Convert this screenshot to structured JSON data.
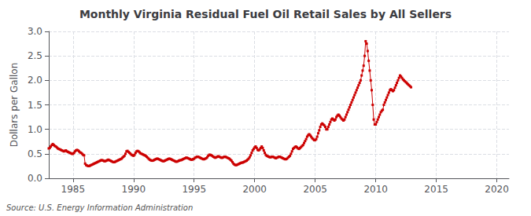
{
  "chart_data": {
    "type": "line",
    "title": "Monthly Virginia Residual Fuel Oil Retail Sales by All Sellers",
    "ylabel": "Dollars per Gallon",
    "annotation": "Source: U.S. Energy Information Administration",
    "color": "#cc0000",
    "marker": "square",
    "line_style": "solid",
    "grid": true,
    "xlim": [
      1983,
      2021
    ],
    "ylim": [
      0.0,
      3.0
    ],
    "xticks": [
      1985,
      1990,
      1995,
      2000,
      2005,
      2010,
      2015,
      2020
    ],
    "yticks": [
      {
        "value": 0.0,
        "label": "0.0"
      },
      0.5,
      {
        "value": 1.0,
        "label": "1.0"
      },
      1.5,
      {
        "value": 2.0,
        "label": "2.0"
      },
      2.5,
      {
        "value": 3.0,
        "label": "3.0"
      }
    ],
    "x": [
      1983,
      1983.083333,
      1983.166667,
      1983.25,
      1983.333333,
      1983.416667,
      1983.5,
      1983.583333,
      1983.666667,
      1983.75,
      1983.833333,
      1983.916667,
      1984,
      1984.083333,
      1984.166667,
      1984.25,
      1984.333333,
      1984.416667,
      1984.5,
      1984.583333,
      1984.666667,
      1984.75,
      1984.833333,
      1984.916667,
      1985,
      1985.083333,
      1985.166667,
      1985.25,
      1985.333333,
      1985.416667,
      1985.5,
      1985.583333,
      1985.666667,
      1985.75,
      1985.833333,
      1985.916667,
      1986,
      1986.083333,
      1986.166667,
      1986.25,
      1986.333333,
      1986.416667,
      1986.5,
      1986.583333,
      1986.666667,
      1986.75,
      1986.833333,
      1986.916667,
      1987,
      1987.083333,
      1987.166667,
      1987.25,
      1987.333333,
      1987.416667,
      1987.5,
      1987.583333,
      1987.666667,
      1987.75,
      1987.833333,
      1987.916667,
      1988,
      1988.083333,
      1988.166667,
      1988.25,
      1988.333333,
      1988.416667,
      1988.5,
      1988.583333,
      1988.666667,
      1988.75,
      1988.833333,
      1988.916667,
      1989,
      1989.083333,
      1989.166667,
      1989.25,
      1989.333333,
      1989.416667,
      1989.5,
      1989.583333,
      1989.666667,
      1989.75,
      1989.833333,
      1989.916667,
      1990,
      1990.083333,
      1990.166667,
      1990.25,
      1990.333333,
      1990.416667,
      1990.5,
      1990.583333,
      1990.666667,
      1990.75,
      1990.833333,
      1990.916667,
      1991,
      1991.083333,
      1991.166667,
      1991.25,
      1991.333333,
      1991.416667,
      1991.5,
      1991.583333,
      1991.666667,
      1991.75,
      1991.833333,
      1991.916667,
      1992,
      1992.083333,
      1992.166667,
      1992.25,
      1992.333333,
      1992.416667,
      1992.5,
      1992.583333,
      1992.666667,
      1992.75,
      1992.833333,
      1992.916667,
      1993,
      1993.083333,
      1993.166667,
      1993.25,
      1993.333333,
      1993.416667,
      1993.5,
      1993.583333,
      1993.666667,
      1993.75,
      1993.833333,
      1993.916667,
      1994,
      1994.083333,
      1994.166667,
      1994.25,
      1994.333333,
      1994.416667,
      1994.5,
      1994.583333,
      1994.666667,
      1994.75,
      1994.833333,
      1994.916667,
      1995,
      1995.083333,
      1995.166667,
      1995.25,
      1995.333333,
      1995.416667,
      1995.5,
      1995.583333,
      1995.666667,
      1995.75,
      1995.833333,
      1995.916667,
      1996,
      1996.083333,
      1996.166667,
      1996.25,
      1996.333333,
      1996.416667,
      1996.5,
      1996.583333,
      1996.666667,
      1996.75,
      1996.833333,
      1996.916667,
      1997,
      1997.083333,
      1997.166667,
      1997.25,
      1997.333333,
      1997.416667,
      1997.5,
      1997.583333,
      1997.666667,
      1997.75,
      1997.833333,
      1997.916667,
      1998,
      1998.083333,
      1998.166667,
      1998.25,
      1998.333333,
      1998.416667,
      1998.5,
      1998.583333,
      1998.666667,
      1998.75,
      1998.833333,
      1998.916667,
      1999,
      1999.083333,
      1999.166667,
      1999.25,
      1999.333333,
      1999.416667,
      1999.5,
      1999.583333,
      1999.666667,
      1999.75,
      1999.833333,
      1999.916667,
      2000,
      2000.083333,
      2000.166667,
      2000.25,
      2000.333333,
      2000.416667,
      2000.5,
      2000.583333,
      2000.666667,
      2000.75,
      2000.833333,
      2000.916667,
      2001,
      2001.083333,
      2001.166667,
      2001.25,
      2001.333333,
      2001.416667,
      2001.5,
      2001.583333,
      2001.666667,
      2001.75,
      2001.833333,
      2001.916667,
      2002,
      2002.083333,
      2002.166667,
      2002.25,
      2002.333333,
      2002.416667,
      2002.5,
      2002.583333,
      2002.666667,
      2002.75,
      2002.833333,
      2002.916667,
      2003,
      2003.083333,
      2003.166667,
      2003.25,
      2003.333333,
      2003.416667,
      2003.5,
      2003.583333,
      2003.666667,
      2003.75,
      2003.833333,
      2003.916667,
      2004,
      2004.083333,
      2004.166667,
      2004.25,
      2004.333333,
      2004.416667,
      2004.5,
      2004.583333,
      2004.666667,
      2004.75,
      2004.833333,
      2004.916667,
      2005,
      2005.083333,
      2005.166667,
      2005.25,
      2005.333333,
      2005.416667,
      2005.5,
      2005.583333,
      2005.666667,
      2005.75,
      2005.833333,
      2005.916667,
      2006,
      2006.083333,
      2006.166667,
      2006.25,
      2006.333333,
      2006.416667,
      2006.5,
      2006.583333,
      2006.666667,
      2006.75,
      2006.833333,
      2006.916667,
      2007,
      2007.083333,
      2007.166667,
      2007.25,
      2007.333333,
      2007.416667,
      2007.5,
      2007.583333,
      2007.666667,
      2007.75,
      2007.833333,
      2007.916667,
      2008,
      2008.083333,
      2008.166667,
      2008.25,
      2008.333333,
      2008.416667,
      2008.5,
      2008.583333,
      2008.666667,
      2008.75,
      2008.833333,
      2008.916667,
      2009,
      2009.083333,
      2009.166667,
      2009.25,
      2009.333333,
      2009.416667,
      2009.5,
      2009.583333,
      2009.666667,
      2009.75,
      2009.833333,
      2009.916667,
      2010,
      2010.083333,
      2010.166667,
      2010.25,
      2010.333333,
      2010.416667,
      2010.5,
      2010.583333,
      2010.666667,
      2010.75,
      2010.833333,
      2010.916667,
      2011,
      2011.083333,
      2011.166667,
      2011.25,
      2011.333333,
      2011.416667,
      2011.5,
      2011.583333,
      2011.666667,
      2011.75,
      2011.833333,
      2011.916667,
      2012,
      2012.083333,
      2012.166667,
      2012.25,
      2012.333333,
      2012.416667,
      2012.5,
      2012.583333,
      2012.666667,
      2012.75,
      2012.833333,
      2012.916667
    ],
    "values": [
      0.61,
      0.62,
      0.65,
      0.68,
      0.7,
      0.68,
      0.66,
      0.65,
      0.63,
      0.61,
      0.6,
      0.59,
      0.58,
      0.57,
      0.56,
      0.55,
      0.56,
      0.57,
      0.55,
      0.54,
      0.53,
      0.52,
      0.51,
      0.5,
      0.5,
      0.52,
      0.55,
      0.57,
      0.58,
      0.57,
      0.55,
      0.53,
      0.52,
      0.5,
      0.48,
      0.47,
      0.3,
      0.27,
      0.26,
      0.25,
      0.25,
      0.26,
      0.27,
      0.28,
      0.29,
      0.3,
      0.31,
      0.32,
      0.33,
      0.34,
      0.35,
      0.36,
      0.37,
      0.37,
      0.36,
      0.35,
      0.35,
      0.36,
      0.37,
      0.38,
      0.37,
      0.36,
      0.35,
      0.34,
      0.33,
      0.33,
      0.34,
      0.35,
      0.36,
      0.37,
      0.38,
      0.39,
      0.4,
      0.42,
      0.44,
      0.46,
      0.5,
      0.55,
      0.56,
      0.54,
      0.52,
      0.5,
      0.48,
      0.47,
      0.46,
      0.48,
      0.52,
      0.55,
      0.56,
      0.55,
      0.53,
      0.51,
      0.5,
      0.49,
      0.48,
      0.47,
      0.46,
      0.44,
      0.42,
      0.4,
      0.38,
      0.37,
      0.36,
      0.36,
      0.37,
      0.38,
      0.39,
      0.4,
      0.4,
      0.39,
      0.38,
      0.37,
      0.36,
      0.35,
      0.35,
      0.36,
      0.37,
      0.38,
      0.39,
      0.4,
      0.4,
      0.39,
      0.38,
      0.37,
      0.36,
      0.35,
      0.34,
      0.34,
      0.35,
      0.36,
      0.37,
      0.37,
      0.38,
      0.39,
      0.4,
      0.41,
      0.42,
      0.42,
      0.41,
      0.4,
      0.39,
      0.38,
      0.38,
      0.39,
      0.4,
      0.42,
      0.43,
      0.44,
      0.44,
      0.43,
      0.42,
      0.41,
      0.4,
      0.39,
      0.39,
      0.4,
      0.41,
      0.43,
      0.46,
      0.48,
      0.48,
      0.47,
      0.46,
      0.44,
      0.43,
      0.42,
      0.43,
      0.44,
      0.45,
      0.44,
      0.43,
      0.42,
      0.42,
      0.43,
      0.44,
      0.44,
      0.43,
      0.42,
      0.41,
      0.4,
      0.38,
      0.36,
      0.33,
      0.3,
      0.28,
      0.27,
      0.27,
      0.28,
      0.29,
      0.3,
      0.31,
      0.32,
      0.32,
      0.33,
      0.34,
      0.35,
      0.36,
      0.38,
      0.4,
      0.43,
      0.47,
      0.52,
      0.57,
      0.6,
      0.63,
      0.65,
      0.62,
      0.58,
      0.57,
      0.59,
      0.62,
      0.65,
      0.62,
      0.57,
      0.52,
      0.48,
      0.46,
      0.45,
      0.44,
      0.43,
      0.43,
      0.44,
      0.44,
      0.43,
      0.42,
      0.41,
      0.42,
      0.43,
      0.44,
      0.44,
      0.43,
      0.42,
      0.41,
      0.4,
      0.39,
      0.39,
      0.4,
      0.42,
      0.44,
      0.46,
      0.5,
      0.55,
      0.6,
      0.62,
      0.64,
      0.65,
      0.63,
      0.61,
      0.6,
      0.62,
      0.64,
      0.66,
      0.68,
      0.72,
      0.76,
      0.8,
      0.85,
      0.88,
      0.9,
      0.88,
      0.85,
      0.82,
      0.8,
      0.78,
      0.78,
      0.8,
      0.85,
      0.92,
      0.98,
      1.05,
      1.1,
      1.12,
      1.1,
      1.08,
      1.05,
      1.0,
      1.0,
      1.05,
      1.1,
      1.15,
      1.2,
      1.22,
      1.2,
      1.18,
      1.2,
      1.25,
      1.28,
      1.3,
      1.28,
      1.25,
      1.22,
      1.2,
      1.18,
      1.2,
      1.25,
      1.3,
      1.35,
      1.4,
      1.45,
      1.5,
      1.55,
      1.6,
      1.65,
      1.7,
      1.75,
      1.8,
      1.85,
      1.9,
      1.95,
      2.0,
      2.1,
      2.2,
      2.3,
      2.5,
      2.8,
      2.75,
      2.6,
      2.4,
      2.2,
      2.0,
      1.8,
      1.5,
      1.2,
      1.1,
      1.1,
      1.15,
      1.2,
      1.25,
      1.3,
      1.35,
      1.38,
      1.4,
      1.5,
      1.55,
      1.6,
      1.65,
      1.7,
      1.75,
      1.8,
      1.82,
      1.8,
      1.78,
      1.8,
      1.85,
      1.9,
      1.95,
      2.0,
      2.05,
      2.1,
      2.08,
      2.05,
      2.02,
      2.0,
      1.98,
      1.96,
      1.94,
      1.92,
      1.9,
      1.88,
      1.86
    ]
  }
}
